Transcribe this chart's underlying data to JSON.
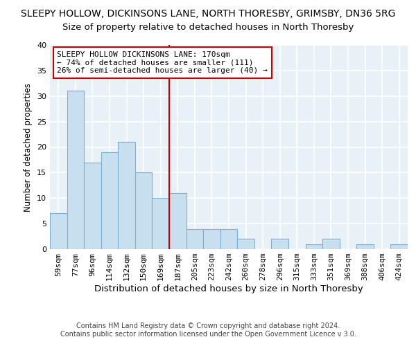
{
  "title": "SLEEPY HOLLOW, DICKINSONS LANE, NORTH THORESBY, GRIMSBY, DN36 5RG",
  "subtitle": "Size of property relative to detached houses in North Thoresby",
  "xlabel": "Distribution of detached houses by size in North Thoresby",
  "ylabel": "Number of detached properties",
  "bar_color": "#c8dff0",
  "bar_edge_color": "#7aafd4",
  "background_color": "#e8f0f8",
  "grid_color": "#ffffff",
  "bin_labels": [
    "59sqm",
    "77sqm",
    "96sqm",
    "114sqm",
    "132sqm",
    "150sqm",
    "169sqm",
    "187sqm",
    "205sqm",
    "223sqm",
    "242sqm",
    "260sqm",
    "278sqm",
    "296sqm",
    "315sqm",
    "333sqm",
    "351sqm",
    "369sqm",
    "388sqm",
    "406sqm",
    "424sqm"
  ],
  "bar_heights": [
    7,
    31,
    17,
    19,
    21,
    15,
    10,
    11,
    4,
    4,
    4,
    2,
    0,
    2,
    0,
    1,
    2,
    0,
    1,
    0,
    1
  ],
  "vline_color": "#cc0000",
  "ylim": [
    0,
    40
  ],
  "yticks": [
    0,
    5,
    10,
    15,
    20,
    25,
    30,
    35,
    40
  ],
  "annotation_line1": "SLEEPY HOLLOW DICKINSONS LANE: 170sqm",
  "annotation_line2": "← 74% of detached houses are smaller (111)",
  "annotation_line3": "26% of semi-detached houses are larger (40) →",
  "footnote_line1": "Contains HM Land Registry data © Crown copyright and database right 2024.",
  "footnote_line2": "Contains public sector information licensed under the Open Government Licence v 3.0.",
  "title_fontsize": 10,
  "subtitle_fontsize": 9.5,
  "xlabel_fontsize": 9.5,
  "ylabel_fontsize": 8.5,
  "tick_fontsize": 8,
  "annot_fontsize": 8,
  "footnote_fontsize": 7
}
